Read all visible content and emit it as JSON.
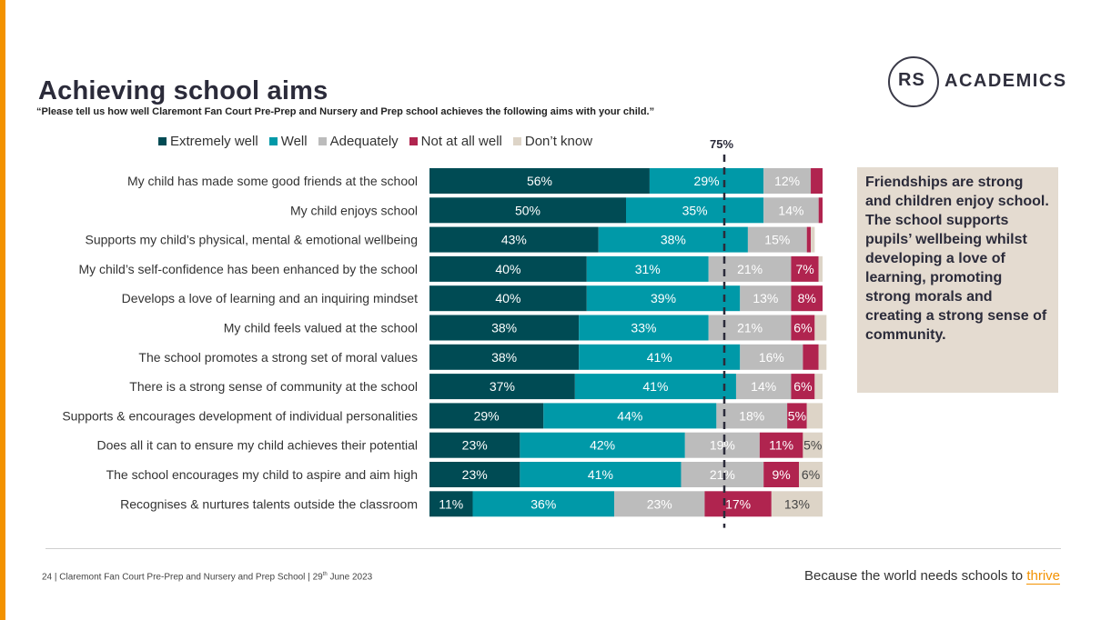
{
  "title": "Achieving school aims",
  "subtitle": "“Please tell us how well Claremont Fan Court Pre-Prep and Nursery and Prep school achieves the following aims with your child.”",
  "logo": {
    "rs": "RS",
    "academics": "ACADEMICS"
  },
  "marker_label": "75%",
  "callout_text": "Friendships are strong and children enjoy school. The school supports pupils’ wellbeing whilst developing a love of learning, promoting strong morals and creating a strong sense of community.",
  "footer": {
    "page": "24",
    "source": "Claremont Fan Court Pre-Prep and Nursery and Prep School",
    "date_day": "29",
    "date_suffix": "th",
    "date_rest": "June 2023",
    "tagline": "Because the world needs schools to",
    "tagline_highlight": "thrive"
  },
  "colors": {
    "extremely_well": "#004b54",
    "well": "#0099a8",
    "adequately": "#bcbcbc",
    "not_at_all_well": "#b0244f",
    "dont_know": "#ddd4c7",
    "accent": "#f39200"
  },
  "chart_data": {
    "type": "bar",
    "orientation": "horizontal",
    "stacked": true,
    "reference_line": {
      "value": 75,
      "label": "75%"
    },
    "legend_position": "top",
    "categories": [
      "My child has made some good friends at the school",
      "My child enjoys school",
      "Supports my child’s physical, mental & emotional wellbeing",
      "My child’s self-confidence has been enhanced by the school",
      "Develops a love of learning and an inquiring mindset",
      "My child feels valued at the school",
      "The school promotes a strong set of moral values",
      "There is a strong sense of community at the school",
      "Supports & encourages development of individual personalities",
      "Does all it can to ensure my child achieves their potential",
      "The school encourages my child to aspire and aim high",
      "Recognises & nurtures talents outside the classroom"
    ],
    "series": [
      {
        "name": "Extremely well",
        "color": "#004b54",
        "values": [
          56,
          50,
          43,
          40,
          40,
          38,
          38,
          37,
          29,
          23,
          23,
          11
        ]
      },
      {
        "name": "Well",
        "color": "#0099a8",
        "values": [
          29,
          35,
          38,
          31,
          39,
          33,
          41,
          41,
          44,
          42,
          41,
          36
        ]
      },
      {
        "name": "Adequately",
        "color": "#bcbcbc",
        "values": [
          12,
          14,
          15,
          21,
          13,
          21,
          16,
          14,
          18,
          19,
          21,
          23
        ]
      },
      {
        "name": "Not at all well",
        "color": "#b0244f",
        "values": [
          3,
          1,
          1,
          7,
          8,
          6,
          4,
          6,
          5,
          11,
          9,
          17
        ]
      },
      {
        "name": "Don’t know",
        "color": "#ddd4c7",
        "values": [
          0,
          0,
          1,
          1,
          0,
          3,
          2,
          2,
          4,
          5,
          6,
          13
        ]
      }
    ],
    "data_labels": [
      [
        "56%",
        "29%",
        "12%",
        "",
        ""
      ],
      [
        "50%",
        "35%",
        "14%",
        "",
        ""
      ],
      [
        "43%",
        "38%",
        "15%",
        "",
        ""
      ],
      [
        "40%",
        "31%",
        "21%",
        "7%",
        ""
      ],
      [
        "40%",
        "39%",
        "13%",
        "8%",
        ""
      ],
      [
        "38%",
        "33%",
        "21%",
        "6%",
        ""
      ],
      [
        "38%",
        "41%",
        "16%",
        "",
        ""
      ],
      [
        "37%",
        "41%",
        "14%",
        "6%",
        ""
      ],
      [
        "29%",
        "44%",
        "18%",
        "5%",
        ""
      ],
      [
        "23%",
        "42%",
        "19%",
        "11%",
        "5%"
      ],
      [
        "23%",
        "41%",
        "21%",
        "9%",
        "6%"
      ],
      [
        "11%",
        "36%",
        "23%",
        "17%",
        "13%"
      ]
    ],
    "xlim": [
      0,
      100
    ]
  }
}
